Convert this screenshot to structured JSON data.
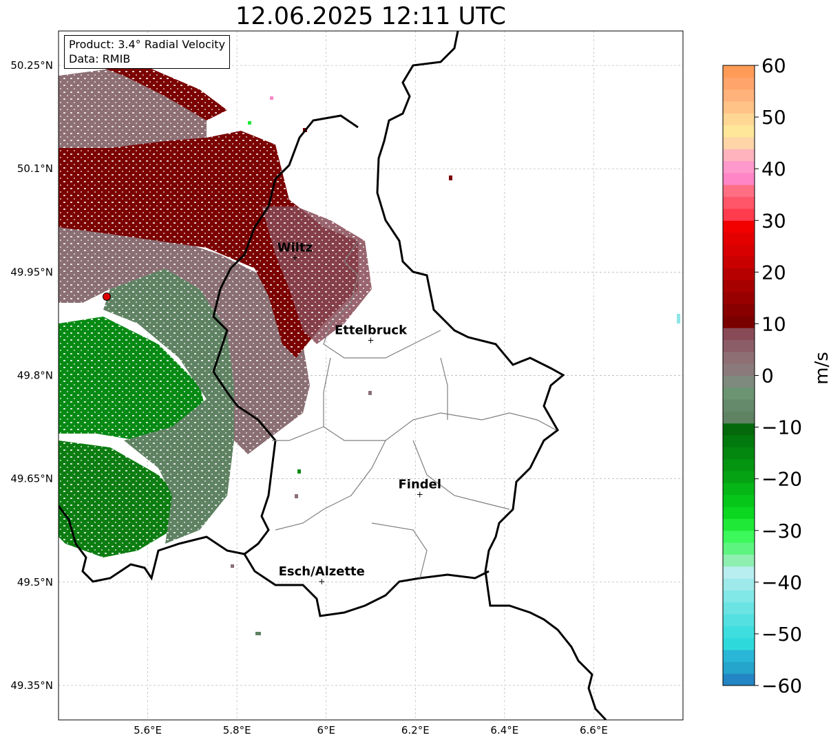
{
  "title": "12.06.2025 12:11 UTC",
  "info": {
    "product": "Product: 3.4° Radial Velocity",
    "data": "Data: RMIB"
  },
  "map": {
    "lon_range": [
      5.4,
      6.8
    ],
    "lat_range": [
      49.3,
      50.3
    ],
    "lon_ticks": [
      "5.6°E",
      "5.8°E",
      "6°E",
      "6.2°E",
      "6.4°E",
      "6.6°E"
    ],
    "lat_ticks": [
      "50.25°N",
      "50.1°N",
      "49.95°N",
      "49.8°N",
      "49.65°N",
      "49.5°N",
      "49.35°N"
    ],
    "radar_site": {
      "lon": 5.505,
      "lat": 49.914
    },
    "cities": [
      {
        "name": "Wiltz",
        "lon": 5.93,
        "lat": 49.97
      },
      {
        "name": "Ettelbruck",
        "lon": 6.1,
        "lat": 49.85
      },
      {
        "name": "Findel",
        "lon": 6.21,
        "lat": 49.626
      },
      {
        "name": "Esch/Alzette",
        "lon": 5.99,
        "lat": 49.5
      }
    ]
  },
  "colorbar": {
    "label": "m/s",
    "min": -60,
    "max": 60,
    "ticks": [
      "60",
      "50",
      "40",
      "30",
      "20",
      "10",
      "0",
      "−10",
      "−20",
      "−30",
      "−40",
      "−50",
      "−60"
    ],
    "colors": [
      "#2385c3",
      "#25a4cc",
      "#2ab6d6",
      "#2ed9dc",
      "#3fdede",
      "#54e0e0",
      "#6be3e3",
      "#82e7e7",
      "#9eeaea",
      "#b9eef0",
      "#8fefb0",
      "#5df57f",
      "#3cf85a",
      "#1fe936",
      "#0bd620",
      "#07c61a",
      "#06b616",
      "#05a313",
      "#049510",
      "#03870e",
      "#02790c",
      "#03690b",
      "#5f8263",
      "#65896b",
      "#6b9572",
      "#7e8a7e",
      "#8a7a7c",
      "#8d6f74",
      "#8b5d66",
      "#874a56",
      "#7b0000",
      "#880000",
      "#980000",
      "#a70000",
      "#b60000",
      "#c80000",
      "#d80000",
      "#e50000",
      "#f20000",
      "#ff3b4d",
      "#ff5568",
      "#ff6f84",
      "#ff85c7",
      "#ff99cc",
      "#ffb3bd",
      "#ffd5a8",
      "#ffe79a",
      "#ffd795",
      "#ffc388",
      "#ffb37b",
      "#ffa56b",
      "#ff9b57"
    ]
  }
}
